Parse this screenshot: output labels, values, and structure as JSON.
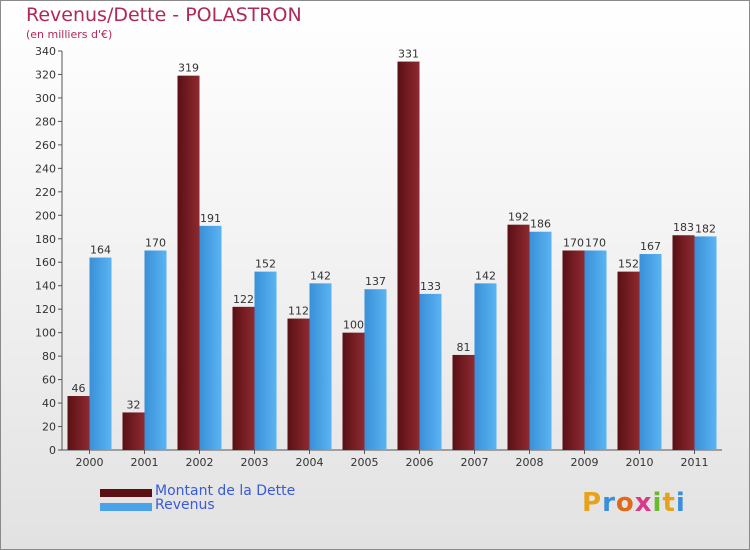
{
  "title": "Revenus/Dette - POLASTRON",
  "subtitle": "(en milliers d'€)",
  "colors": {
    "dette": "#7a1f24",
    "revenus": "#4aa3e8",
    "title": "#b0285a",
    "legend_text": "#3a5ad8"
  },
  "chart_data": {
    "type": "bar",
    "title": "Revenus/Dette - POLASTRON",
    "subtitle": "(en milliers d'€)",
    "categories": [
      "2000",
      "2001",
      "2002",
      "2003",
      "2004",
      "2005",
      "2006",
      "2007",
      "2008",
      "2009",
      "2010",
      "2011"
    ],
    "series": [
      {
        "name": "Montant de la Dette",
        "values": [
          46,
          32,
          319,
          122,
          112,
          100,
          331,
          81,
          192,
          170,
          152,
          183
        ]
      },
      {
        "name": "Revenus",
        "values": [
          164,
          170,
          191,
          152,
          142,
          137,
          133,
          142,
          186,
          170,
          167,
          182
        ]
      }
    ],
    "ylim": [
      0,
      340
    ],
    "yticks": [
      0,
      20,
      40,
      60,
      80,
      100,
      120,
      140,
      160,
      180,
      200,
      220,
      240,
      260,
      280,
      300,
      320,
      340
    ],
    "grid": false,
    "legend": "bottom-left"
  },
  "legend": {
    "dette_label": "Montant de la Dette",
    "revenus_label": "Revenus"
  },
  "logo": {
    "text": "Proxiti"
  }
}
